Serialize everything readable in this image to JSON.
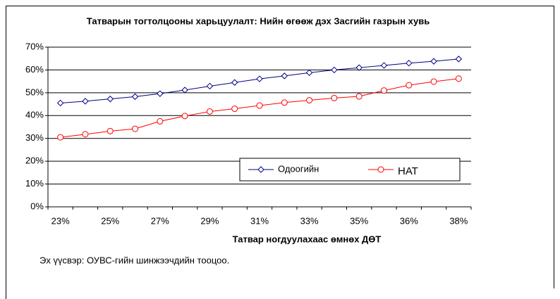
{
  "chart_data": {
    "type": "line",
    "title": "Татварын тогтолцооны харьцуулалт: Нийн өгөөж дэх Засгийн газрын хувь",
    "x_label": "Татвар ногдуулахаас өмнөх ДӨТ",
    "source": "Эх үүсвэр: ОУВС-гийн шинжээчдийн тооцоо.",
    "categories": [
      "23%",
      null,
      "25%",
      null,
      "27%",
      null,
      "29%",
      null,
      "31%",
      null,
      "33%",
      null,
      "35%",
      null,
      "36%",
      null,
      "38%"
    ],
    "series": [
      {
        "name": "Одоогийн",
        "color": "#000080",
        "marker": "diamond",
        "values": [
          45.5,
          46.3,
          47.3,
          48.3,
          49.6,
          51.2,
          52.9,
          54.5,
          56.1,
          57.4,
          58.8,
          60,
          61,
          62,
          63,
          63.8,
          64.8
        ]
      },
      {
        "name": "НАТ",
        "color": "#ff0000",
        "marker": "circle",
        "values": [
          30.5,
          31.8,
          33.2,
          34.2,
          37.5,
          39.8,
          41.8,
          43,
          44.4,
          45.7,
          46.7,
          47.7,
          48.4,
          51,
          53.3,
          54.9,
          56.2
        ]
      }
    ],
    "ylim": [
      0,
      70
    ],
    "yticks": [
      {
        "value": 0,
        "label": "0%"
      },
      {
        "value": 10,
        "label": "10%"
      },
      {
        "value": 20,
        "label": "20%"
      },
      {
        "value": 30,
        "label": "30%"
      },
      {
        "value": 40,
        "label": "40%"
      },
      {
        "value": 50,
        "label": "50%"
      },
      {
        "value": 60,
        "label": "60%"
      },
      {
        "value": 70,
        "label": "70%"
      }
    ],
    "grid": true,
    "legend": "lower-right"
  }
}
